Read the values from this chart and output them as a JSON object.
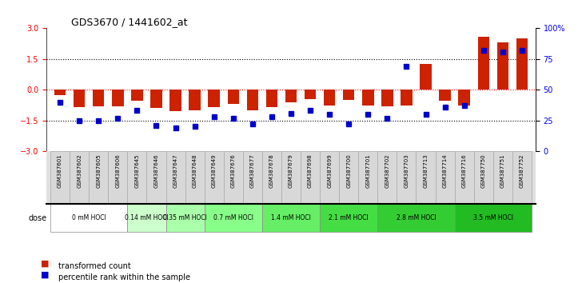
{
  "title": "GDS3670 / 1441602_at",
  "samples": [
    "GSM387601",
    "GSM387602",
    "GSM387605",
    "GSM387606",
    "GSM387645",
    "GSM387646",
    "GSM387647",
    "GSM387648",
    "GSM387649",
    "GSM387676",
    "GSM387677",
    "GSM387678",
    "GSM387679",
    "GSM387698",
    "GSM387699",
    "GSM387700",
    "GSM387701",
    "GSM387702",
    "GSM387703",
    "GSM387713",
    "GSM387714",
    "GSM387716",
    "GSM387750",
    "GSM387751",
    "GSM387752"
  ],
  "transformed_count": [
    -0.25,
    -0.85,
    -0.8,
    -0.8,
    -0.55,
    -0.9,
    -1.05,
    -1.0,
    -0.85,
    -0.7,
    -1.0,
    -0.85,
    -0.6,
    -0.45,
    -0.75,
    -0.5,
    -0.75,
    -0.8,
    -0.75,
    1.25,
    -0.55,
    -0.75,
    2.6,
    2.3,
    2.5
  ],
  "percentile_rank": [
    40,
    25,
    25,
    27,
    33,
    21,
    19,
    20,
    28,
    27,
    22,
    28,
    31,
    33,
    30,
    22,
    30,
    27,
    69,
    30,
    36,
    37,
    82,
    81,
    82
  ],
  "dose_groups": [
    {
      "label": "0 mM HOCl",
      "start": 0,
      "end": 4,
      "color": "#ffffff"
    },
    {
      "label": "0.14 mM HOCl",
      "start": 4,
      "end": 6,
      "color": "#ccffcc"
    },
    {
      "label": "0.35 mM HOCl",
      "start": 6,
      "end": 8,
      "color": "#99ff99"
    },
    {
      "label": "0.7 mM HOCl",
      "start": 8,
      "end": 11,
      "color": "#66ff66"
    },
    {
      "label": "1.4 mM HOCl",
      "start": 11,
      "end": 14,
      "color": "#44ee44"
    },
    {
      "label": "2.1 mM HOCl",
      "start": 14,
      "end": 17,
      "color": "#33dd33"
    },
    {
      "label": "2.8 mM HOCl",
      "start": 17,
      "end": 21,
      "color": "#22cc22"
    },
    {
      "label": "3.5 mM HOCl",
      "start": 21,
      "end": 25,
      "color": "#11bb11"
    }
  ],
  "ylim": [
    -3,
    3
  ],
  "yticks": [
    -3,
    -1.5,
    0,
    1.5,
    3
  ],
  "y2ticks": [
    0,
    25,
    50,
    75,
    100
  ],
  "bar_color": "#cc2200",
  "dot_color": "#0000cc",
  "bar_width": 0.6
}
